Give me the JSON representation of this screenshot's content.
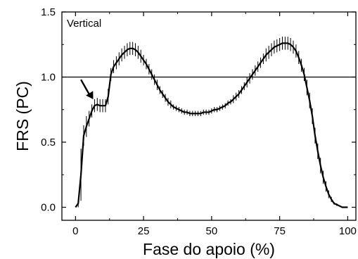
{
  "chart_data": {
    "type": "line",
    "annotation": "Vertical",
    "xlabel": "Fase do apoio (%)",
    "ylabel": "FRS (PC)",
    "xlim": [
      -5,
      103
    ],
    "ylim": [
      -0.1,
      1.5
    ],
    "x_ticks": [
      0,
      25,
      50,
      75,
      100
    ],
    "x_tick_labels": [
      "0",
      "25",
      "50",
      "75",
      "100"
    ],
    "y_ticks": [
      0.0,
      0.5,
      1.0,
      1.5
    ],
    "y_tick_labels": [
      "0.0",
      "0.5",
      "1.0",
      "1.5"
    ],
    "reference_line_y": 1.0,
    "arrow": {
      "from": [
        2,
        0.98
      ],
      "to": [
        6.5,
        0.83
      ]
    },
    "series": [
      {
        "x": [
          0,
          1,
          2,
          3,
          4,
          5,
          6,
          7,
          8,
          9,
          10,
          11,
          12,
          13,
          14,
          15,
          16,
          17,
          18,
          19,
          20,
          21,
          22,
          23,
          24,
          25,
          26,
          27,
          28,
          29,
          30,
          31,
          32,
          33,
          34,
          35,
          36,
          37,
          38,
          39,
          40,
          41,
          42,
          43,
          44,
          45,
          46,
          47,
          48,
          49,
          50,
          51,
          52,
          53,
          54,
          55,
          56,
          57,
          58,
          59,
          60,
          61,
          62,
          63,
          64,
          65,
          66,
          67,
          68,
          69,
          70,
          71,
          72,
          73,
          74,
          75,
          76,
          77,
          78,
          79,
          80,
          81,
          82,
          83,
          84,
          85,
          86,
          87,
          88,
          89,
          90,
          91,
          92,
          93,
          94,
          95,
          96,
          97,
          98,
          99,
          100
        ],
        "y": [
          0.0,
          0.03,
          0.25,
          0.55,
          0.62,
          0.68,
          0.74,
          0.78,
          0.79,
          0.78,
          0.78,
          0.78,
          0.85,
          1.02,
          1.08,
          1.11,
          1.14,
          1.17,
          1.19,
          1.21,
          1.22,
          1.22,
          1.21,
          1.19,
          1.16,
          1.13,
          1.1,
          1.06,
          1.02,
          0.98,
          0.94,
          0.9,
          0.87,
          0.84,
          0.81,
          0.79,
          0.77,
          0.76,
          0.75,
          0.74,
          0.73,
          0.73,
          0.72,
          0.72,
          0.72,
          0.72,
          0.72,
          0.73,
          0.73,
          0.73,
          0.74,
          0.75,
          0.75,
          0.76,
          0.77,
          0.78,
          0.8,
          0.81,
          0.83,
          0.85,
          0.87,
          0.9,
          0.93,
          0.96,
          0.99,
          1.02,
          1.05,
          1.08,
          1.11,
          1.14,
          1.17,
          1.19,
          1.21,
          1.23,
          1.24,
          1.25,
          1.26,
          1.26,
          1.26,
          1.25,
          1.23,
          1.2,
          1.15,
          1.09,
          1.02,
          0.92,
          0.82,
          0.7,
          0.55,
          0.43,
          0.32,
          0.23,
          0.16,
          0.1,
          0.06,
          0.03,
          0.02,
          0.01,
          0.0,
          0.0,
          0.0
        ],
        "error": [
          0,
          0.03,
          0.2,
          0.08,
          0.08,
          0.06,
          0.05,
          0.05,
          0.05,
          0.05,
          0.05,
          0.05,
          0.06,
          0.05,
          0.05,
          0.05,
          0.05,
          0.05,
          0.05,
          0.05,
          0.05,
          0.05,
          0.05,
          0.05,
          0.05,
          0.04,
          0.04,
          0.04,
          0.04,
          0.04,
          0.04,
          0.03,
          0.03,
          0.03,
          0.03,
          0.03,
          0.02,
          0.02,
          0.02,
          0.02,
          0.02,
          0.02,
          0.02,
          0.02,
          0.02,
          0.02,
          0.02,
          0.02,
          0.02,
          0.02,
          0.02,
          0.02,
          0.02,
          0.02,
          0.02,
          0.02,
          0.02,
          0.02,
          0.03,
          0.03,
          0.03,
          0.03,
          0.03,
          0.04,
          0.04,
          0.04,
          0.04,
          0.04,
          0.04,
          0.04,
          0.05,
          0.05,
          0.05,
          0.05,
          0.05,
          0.05,
          0.05,
          0.05,
          0.05,
          0.05,
          0.05,
          0.05,
          0.05,
          0.05,
          0.05,
          0.06,
          0.06,
          0.06,
          0.06,
          0.06,
          0.06,
          0.05,
          0.04,
          0.03,
          0.02,
          0.01,
          0.01,
          0.0,
          0.0,
          0.0,
          0.0
        ]
      }
    ],
    "grid": false,
    "legend": "none"
  }
}
